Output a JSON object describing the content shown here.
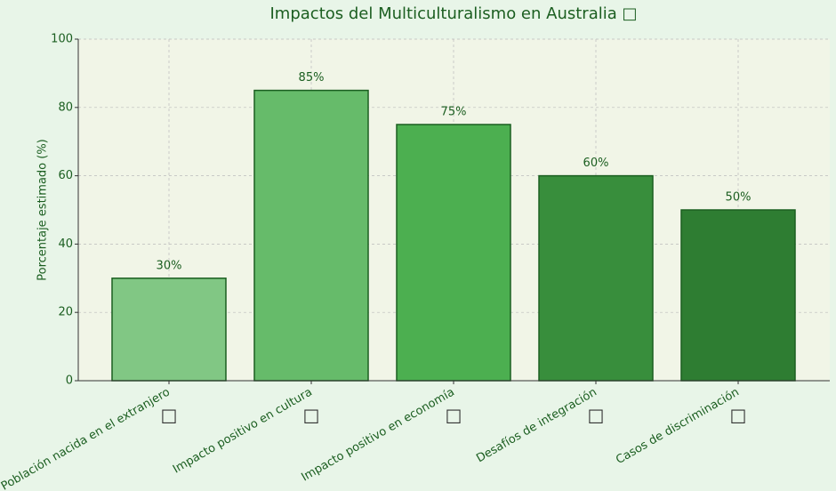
{
  "chart_data": {
    "type": "bar",
    "title": "Impactos del Multiculturalismo en Australia □",
    "y_label": "Porcentaje estimado (%)",
    "categories": [
      "Población nacida en el extranjero",
      "Impacto positivo en cultura",
      "Impacto positivo en economía",
      "Desafíos de integración",
      "Casos de discriminación"
    ],
    "icons": [
      "□",
      "□",
      "□",
      "□",
      "□"
    ],
    "values": [
      30,
      85,
      75,
      60,
      50
    ],
    "value_labels": [
      "30%",
      "85%",
      "75%",
      "60%",
      "50%"
    ],
    "colors": [
      "#81c784",
      "#66bb6a",
      "#4caf50",
      "#388e3c",
      "#2e7d32"
    ],
    "edge_color": "#1b5e20",
    "ylim": [
      0,
      100
    ],
    "yticks": [
      0,
      20,
      40,
      60,
      80,
      100
    ],
    "grid": true
  }
}
